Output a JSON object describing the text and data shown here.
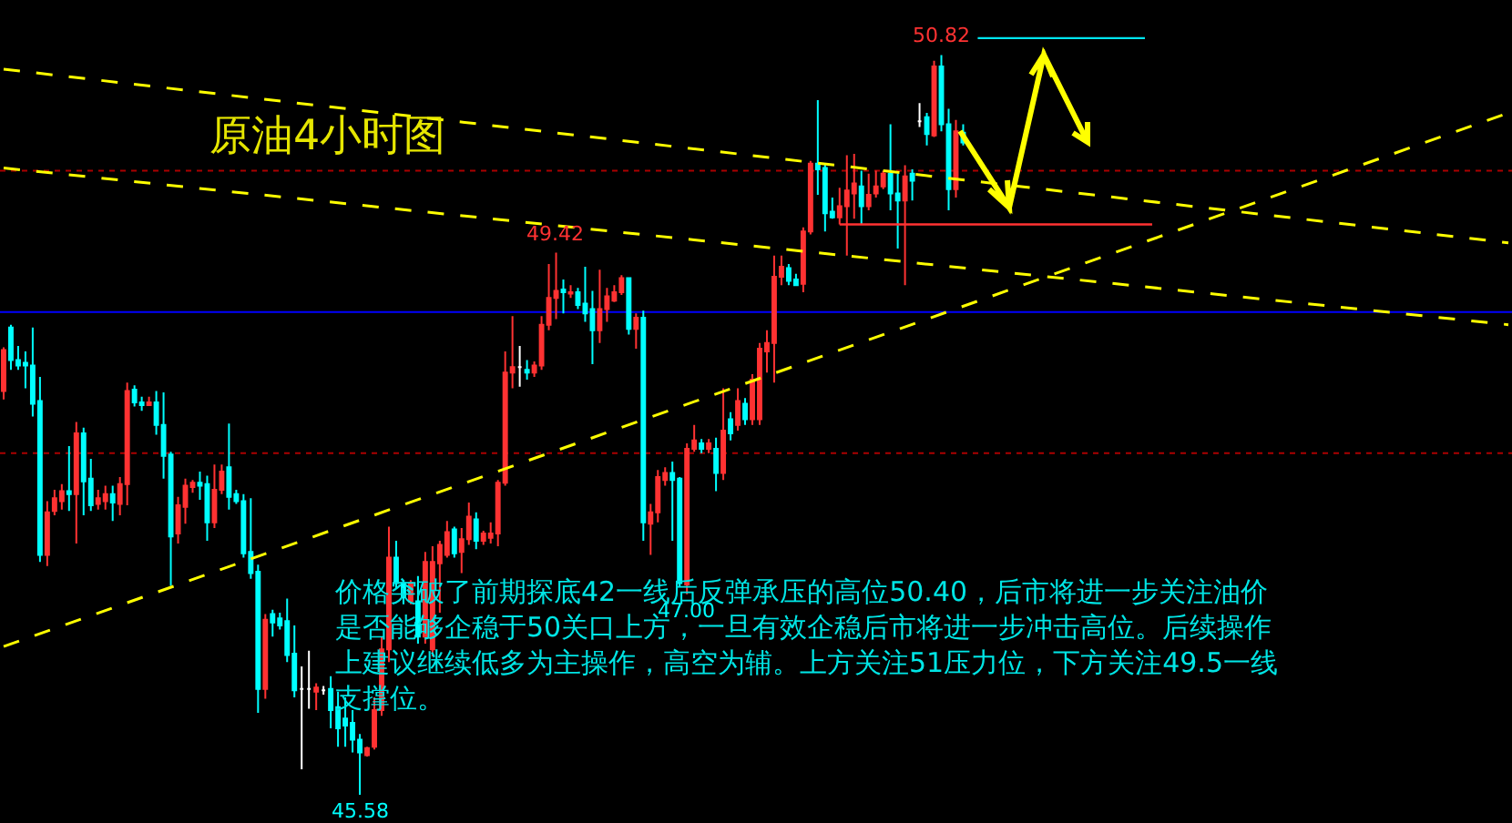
{
  "chart_data": {
    "type": "candlestick",
    "title": "原油4小时图",
    "categories": [
      null,
      null,
      null,
      null,
      null,
      null,
      null,
      null,
      null,
      null,
      null,
      null,
      null,
      null,
      null,
      null,
      null,
      null,
      null,
      null,
      null,
      null,
      null,
      null,
      null,
      null,
      null,
      null,
      null,
      null,
      null,
      null,
      null,
      null,
      null,
      null,
      null,
      null,
      null,
      null,
      null,
      null,
      null,
      null,
      null,
      null,
      null,
      null,
      null,
      null,
      null,
      null,
      null,
      null,
      null,
      null,
      null,
      null,
      null,
      null,
      null,
      null,
      null,
      null,
      null,
      null,
      null,
      null,
      null,
      null,
      null,
      null,
      null,
      null,
      null,
      null,
      null,
      null,
      null,
      null,
      null,
      null,
      null,
      null,
      null,
      null,
      null,
      null,
      null,
      null,
      null,
      null,
      null,
      null,
      null,
      null,
      null,
      null,
      null,
      null,
      null,
      null,
      null,
      null,
      null,
      null,
      null,
      null,
      null,
      null,
      null,
      null,
      null,
      null,
      null,
      null,
      null,
      null,
      null,
      null,
      null,
      null,
      null,
      null,
      null,
      null,
      null,
      null,
      null,
      null,
      null,
      null,
      null,
      null,
      null,
      null,
      null,
      null,
      null,
      null,
      null,
      null,
      null,
      null,
      null,
      null,
      null,
      null,
      null,
      null,
      null,
      null,
      null,
      null,
      null,
      null,
      null,
      null,
      null,
      null,
      null,
      null,
      null,
      null,
      null,
      null,
      null,
      null,
      null,
      null,
      null,
      null,
      null,
      null,
      null,
      null,
      null,
      null,
      null,
      null,
      null,
      null,
      null,
      null,
      null,
      null,
      null,
      null,
      null,
      null,
      null,
      null,
      null,
      null,
      null,
      null,
      null,
      null,
      null,
      null,
      null,
      null,
      null,
      null,
      null,
      null,
      null,
      null
    ],
    "ohlc": [
      [
        48.44,
        48.75,
        48.38,
        48.73
      ],
      [
        48.89,
        48.91,
        48.59,
        48.66
      ],
      [
        48.66,
        48.76,
        48.59,
        48.62
      ],
      [
        48.64,
        48.72,
        48.46,
        48.62
      ],
      [
        48.62,
        48.89,
        48.26,
        48.35
      ],
      [
        48.37,
        48.54,
        47.23,
        47.28
      ],
      [
        47.28,
        47.66,
        47.2,
        47.58
      ],
      [
        47.59,
        47.74,
        47.56,
        47.68
      ],
      [
        47.66,
        47.78,
        47.6,
        47.73
      ],
      [
        47.73,
        48.05,
        47.59,
        47.71
      ],
      [
        47.71,
        48.22,
        47.36,
        48.14
      ],
      [
        48.14,
        48.18,
        47.56,
        47.8
      ],
      [
        47.82,
        47.96,
        47.59,
        47.63
      ],
      [
        47.64,
        47.74,
        47.6,
        47.68
      ],
      [
        47.66,
        47.77,
        47.6,
        47.71
      ],
      [
        47.71,
        47.77,
        47.52,
        47.65
      ],
      [
        47.64,
        47.83,
        47.56,
        47.78
      ],
      [
        47.78,
        48.5,
        47.63,
        48.44
      ],
      [
        48.45,
        48.48,
        48.33,
        48.36
      ],
      [
        48.36,
        48.4,
        48.3,
        48.34
      ],
      [
        48.34,
        48.4,
        48.34,
        48.36
      ],
      [
        48.36,
        48.44,
        48.13,
        48.2
      ],
      [
        48.2,
        48.43,
        47.82,
        47.98
      ],
      [
        47.99,
        48.01,
        47.06,
        47.41
      ],
      [
        47.43,
        47.69,
        47.36,
        47.63
      ],
      [
        47.62,
        47.82,
        47.5,
        47.77
      ],
      [
        47.76,
        47.81,
        47.72,
        47.79
      ],
      [
        47.79,
        47.87,
        47.67,
        47.77
      ],
      [
        47.78,
        47.84,
        47.38,
        47.51
      ],
      [
        47.51,
        47.92,
        47.47,
        47.74
      ],
      [
        47.74,
        47.92,
        47.71,
        47.87
      ],
      [
        47.9,
        48.21,
        47.6,
        47.69
      ],
      [
        47.71,
        47.74,
        47.64,
        47.66
      ],
      [
        47.66,
        47.71,
        47.26,
        47.29
      ],
      [
        47.3,
        47.68,
        47.11,
        47.15
      ],
      [
        47.16,
        47.21,
        46.16,
        46.33
      ],
      [
        46.33,
        46.86,
        46.26,
        46.82
      ],
      [
        46.86,
        46.89,
        46.7,
        46.8
      ],
      [
        46.83,
        46.87,
        46.75,
        46.78
      ],
      [
        46.81,
        46.97,
        46.52,
        46.57
      ],
      [
        46.58,
        46.78,
        46.27,
        46.32
      ],
      [
        46.33,
        46.49,
        45.76,
        46.33
      ],
      [
        46.33,
        46.6,
        46.19,
        46.33
      ],
      [
        46.31,
        46.37,
        46.18,
        46.34
      ],
      [
        46.32,
        46.35,
        46.29,
        46.32
      ],
      [
        46.33,
        46.42,
        46.05,
        46.18
      ],
      [
        46.2,
        46.31,
        45.92,
        46.05
      ],
      [
        46.12,
        46.27,
        45.92,
        46.07
      ],
      [
        46.09,
        46.18,
        45.88,
        45.97
      ],
      [
        45.97,
        46.01,
        45.58,
        45.88
      ],
      [
        45.86,
        45.92,
        45.85,
        45.91
      ],
      [
        45.92,
        46.27,
        45.9,
        46.18
      ],
      [
        46.18,
        46.7,
        46.14,
        46.61
      ],
      [
        46.61,
        47.48,
        46.52,
        47.26
      ],
      [
        47.26,
        47.38,
        47.04,
        47.08
      ],
      [
        47.08,
        47.1,
        46.93,
        46.98
      ],
      [
        46.95,
        47.1,
        46.93,
        47.08
      ],
      [
        46.95,
        47.13,
        46.65,
        46.7
      ],
      [
        46.7,
        47.3,
        46.65,
        47.23
      ],
      [
        46.61,
        47.34,
        46.56,
        47.23
      ],
      [
        47.22,
        47.38,
        46.87,
        47.35
      ],
      [
        47.28,
        47.52,
        47.26,
        47.44
      ],
      [
        47.46,
        47.48,
        47.26,
        47.29
      ],
      [
        47.3,
        47.47,
        47.15,
        47.39
      ],
      [
        47.39,
        47.65,
        47.35,
        47.55
      ],
      [
        47.53,
        47.58,
        47.32,
        47.38
      ],
      [
        47.38,
        47.45,
        47.35,
        47.43
      ],
      [
        47.4,
        47.51,
        47.36,
        47.43
      ],
      [
        47.43,
        47.81,
        47.34,
        47.79
      ],
      [
        47.79,
        48.72,
        47.77,
        48.57
      ],
      [
        48.57,
        48.97,
        48.46,
        48.61
      ],
      [
        48.61,
        48.76,
        48.47,
        48.61
      ],
      [
        48.59,
        48.66,
        48.52,
        48.57
      ],
      [
        48.57,
        48.65,
        48.54,
        48.62
      ],
      [
        48.62,
        48.97,
        48.59,
        48.91
      ],
      [
        48.91,
        49.34,
        48.87,
        49.1
      ],
      [
        49.1,
        49.42,
        48.95,
        49.15
      ],
      [
        49.16,
        49.23,
        48.99,
        49.14
      ],
      [
        49.13,
        49.19,
        49.1,
        49.14
      ],
      [
        49.14,
        49.17,
        49.02,
        49.05
      ],
      [
        49.06,
        49.32,
        48.93,
        48.99
      ],
      [
        49.02,
        49.15,
        48.63,
        48.87
      ],
      [
        48.87,
        49.3,
        48.78,
        49.02
      ],
      [
        49.02,
        49.17,
        48.93,
        49.11
      ],
      [
        49.08,
        49.19,
        49.07,
        49.14
      ],
      [
        49.14,
        49.26,
        49.12,
        49.24
      ],
      [
        49.24,
        49.24,
        48.84,
        48.88
      ],
      [
        48.88,
        48.99,
        48.74,
        48.96
      ],
      [
        48.96,
        49.01,
        47.38,
        47.51
      ],
      [
        47.5,
        47.64,
        47.28,
        47.58
      ],
      [
        47.58,
        47.88,
        47.51,
        47.83
      ],
      [
        47.81,
        47.9,
        47.77,
        47.86
      ],
      [
        47.86,
        47.94,
        47.38,
        47.81
      ],
      [
        47.82,
        47.83,
        47.05,
        47.08
      ],
      [
        47.07,
        48.07,
        47.0,
        48.03
      ],
      [
        48.03,
        48.2,
        48.01,
        48.09
      ],
      [
        48.07,
        48.1,
        48.0,
        48.03
      ],
      [
        48.03,
        48.1,
        48.0,
        48.07
      ],
      [
        48.03,
        48.11,
        47.73,
        47.86
      ],
      [
        47.86,
        48.46,
        47.81,
        48.16
      ],
      [
        48.24,
        48.29,
        48.09,
        48.14
      ],
      [
        48.2,
        48.46,
        48.16,
        48.37
      ],
      [
        48.35,
        48.39,
        48.2,
        48.24
      ],
      [
        48.24,
        48.56,
        48.2,
        48.52
      ],
      [
        48.24,
        48.78,
        48.2,
        48.74
      ],
      [
        48.72,
        48.87,
        48.57,
        48.78
      ],
      [
        48.78,
        49.4,
        48.5,
        49.25
      ],
      [
        49.25,
        49.4,
        49.19,
        49.32
      ],
      [
        49.31,
        49.34,
        49.19,
        49.22
      ],
      [
        49.23,
        49.27,
        49.19,
        49.19
      ],
      [
        49.2,
        49.6,
        49.14,
        49.57
      ],
      [
        49.57,
        50.07,
        49.55,
        50.05
      ],
      [
        50.05,
        50.5,
        49.83,
        50.01
      ],
      [
        50.02,
        50.05,
        49.57,
        49.7
      ],
      [
        49.71,
        49.81,
        49.66,
        49.67
      ],
      [
        49.67,
        49.88,
        49.62,
        49.75
      ],
      [
        49.75,
        50.11,
        49.4,
        49.86
      ],
      [
        49.84,
        50.12,
        49.66,
        49.91
      ],
      [
        49.89,
        50.0,
        49.62,
        49.75
      ],
      [
        49.75,
        49.98,
        49.72,
        49.83
      ],
      [
        49.84,
        50.0,
        49.81,
        49.89
      ],
      [
        49.89,
        50.0,
        49.87,
        49.98
      ],
      [
        49.98,
        50.33,
        49.72,
        49.84
      ],
      [
        49.84,
        49.98,
        49.45,
        49.79
      ],
      [
        49.79,
        50.04,
        49.19,
        49.96
      ],
      [
        49.98,
        50.01,
        49.79,
        49.93
      ],
      [
        50.35,
        50.48,
        50.31,
        50.35
      ],
      [
        50.38,
        50.41,
        50.18,
        50.26
      ],
      [
        50.25,
        50.78,
        50.24,
        50.74
      ],
      [
        50.74,
        50.82,
        50.28,
        50.33
      ],
      [
        50.33,
        50.44,
        49.72,
        49.87
      ],
      [
        49.87,
        50.36,
        49.81,
        50.28
      ],
      [
        50.27,
        50.33,
        50.18,
        50.2
      ],
      null,
      null,
      null,
      null,
      null,
      null,
      null,
      null,
      null,
      null,
      null,
      null,
      null,
      null,
      null,
      null,
      null,
      null,
      null,
      null,
      null,
      null,
      null,
      null,
      null,
      null,
      null,
      null,
      null,
      null,
      null,
      null,
      null,
      null,
      null,
      null,
      null,
      null,
      null,
      null,
      null,
      null,
      null,
      null,
      null,
      null,
      null,
      null,
      null,
      null,
      null,
      null,
      null,
      null,
      null,
      null,
      null,
      null,
      null,
      null,
      null,
      null,
      null,
      null,
      null,
      null,
      null,
      null,
      null,
      null,
      null,
      null,
      null,
      null,
      null
    ],
    "colors": [
      "#ff3232",
      "#00ffff",
      "#00ffff",
      "#00ffff",
      "#00ffff",
      "#00ffff",
      "#ff3232",
      "#ff3232",
      "#ff3232",
      "#00ffff",
      "#ff3232",
      "#00ffff",
      "#00ffff",
      "#ff3232",
      "#ff3232",
      "#00ffff",
      "#ff3232",
      "#ff3232",
      "#00ffff",
      "#00ffff",
      "#ff3232",
      "#00ffff",
      "#00ffff",
      "#00ffff",
      "#ff3232",
      "#ff3232",
      "#ff3232",
      "#00ffff",
      "#00ffff",
      "#ff3232",
      "#ff3232",
      "#00ffff",
      "#00ffff",
      "#00ffff",
      "#00ffff",
      "#00ffff",
      "#ff3232",
      "#00ffff",
      "#00ffff",
      "#00ffff",
      "#00ffff",
      "#ffffff",
      "#ffffff",
      "#ff3232",
      "#ffffff",
      "#00ffff",
      "#00ffff",
      "#00ffff",
      "#00ffff",
      "#00ffff",
      "#ff3232",
      "#ff3232",
      "#ff3232",
      "#ff3232",
      "#00ffff",
      "#00ffff",
      "#ff3232",
      "#00ffff",
      "#ff3232",
      "#ff3232",
      "#ff3232",
      "#ff3232",
      "#00ffff",
      "#ff3232",
      "#ff3232",
      "#00ffff",
      "#ff3232",
      "#ff3232",
      "#ff3232",
      "#ff3232",
      "#ff3232",
      "#ffffff",
      "#00ffff",
      "#ff3232",
      "#ff3232",
      "#ff3232",
      "#ff3232",
      "#00ffff",
      "#ff3232",
      "#00ffff",
      "#00ffff",
      "#00ffff",
      "#ff3232",
      "#ff3232",
      "#ff3232",
      "#ff3232",
      "#00ffff",
      "#ff3232",
      "#00ffff",
      "#ff3232",
      "#ff3232",
      "#ff3232",
      "#00ffff",
      "#00ffff",
      "#ff3232",
      "#ff3232",
      "#00ffff",
      "#ff3232",
      "#00ffff",
      "#ff3232",
      "#00ffff",
      "#ff3232",
      "#00ffff",
      "#ff3232",
      "#ff3232",
      "#ff3232",
      "#ff3232",
      "#ff3232",
      "#00ffff",
      "#00ffff",
      "#ff3232",
      "#ff3232",
      "#00ffff",
      "#00ffff",
      "#00ffff",
      "#ff3232",
      "#ff3232",
      "#ff3232",
      "#00ffff",
      "#ff3232",
      "#ff3232",
      "#ff3232",
      "#00ffff",
      "#00ffff",
      "#ff3232",
      "#00ffff",
      "#ffffff",
      "#00ffff",
      "#ff3232",
      "#00ffff",
      "#00ffff",
      "#ff3232",
      "#00ffff",
      null,
      null,
      null,
      null,
      null,
      null,
      null,
      null,
      null,
      null,
      null,
      null,
      null,
      null,
      null,
      null,
      null,
      null,
      null,
      null,
      null,
      null,
      null,
      null,
      null,
      null,
      null,
      null,
      null,
      null,
      null,
      null,
      null,
      null,
      null,
      null,
      null,
      null,
      null,
      null,
      null,
      null,
      null,
      null,
      null,
      null,
      null,
      null,
      null,
      null,
      null,
      null,
      null,
      null,
      null,
      null,
      null,
      null,
      null,
      null,
      null,
      null,
      null,
      null,
      null,
      null,
      null,
      null,
      null,
      null,
      null,
      null,
      null,
      null,
      null
    ],
    "series": [
      {
        "type": "line",
        "line_style": "dashed",
        "color": "#ffff00",
        "values": [
          50.72,
          null,
          null,
          null,
          null,
          null,
          null,
          null,
          null,
          null,
          null,
          null,
          null,
          null,
          null,
          null,
          null,
          null,
          null,
          null,
          null,
          null,
          null,
          null,
          null,
          null,
          null,
          null,
          null,
          null,
          null,
          null,
          null,
          null,
          null,
          null,
          null,
          null,
          null,
          null,
          null,
          null,
          null,
          null,
          null,
          null,
          null,
          null,
          null,
          null,
          null,
          null,
          null,
          null,
          null,
          null,
          null,
          null,
          null,
          null,
          null,
          null,
          null,
          null,
          null,
          null,
          null,
          null,
          null,
          null,
          null,
          null,
          null,
          null,
          null,
          null,
          null,
          null,
          null,
          null,
          null,
          null,
          null,
          null,
          null,
          null,
          null,
          null,
          null,
          null,
          null,
          null,
          null,
          null,
          null,
          null,
          null,
          null,
          null,
          null,
          null,
          null,
          null,
          null,
          null,
          null,
          null,
          null,
          null,
          null,
          null,
          null,
          null,
          null,
          null,
          null,
          null,
          null,
          null,
          null,
          null,
          null,
          null,
          null,
          null,
          null,
          null,
          null,
          null,
          null,
          null,
          null,
          null,
          null,
          null,
          null,
          null,
          null,
          null,
          null,
          null,
          null,
          null,
          null,
          null,
          null,
          null,
          null,
          null,
          null,
          null,
          null,
          null,
          null,
          null,
          null,
          null,
          null,
          null,
          null,
          null,
          null,
          null,
          null,
          null,
          null,
          null,
          null,
          null,
          null,
          null,
          null,
          null,
          null,
          null,
          null,
          null,
          null,
          null,
          null,
          null,
          null,
          null,
          null,
          null,
          null,
          null,
          null,
          null,
          null,
          null,
          null,
          null,
          null,
          null,
          null,
          null,
          null,
          null,
          null,
          null,
          null,
          null,
          null,
          null,
          null,
          null,
          49.49
        ]
      },
      {
        "type": "line",
        "line_style": "dashed",
        "color": "#ffff00",
        "values": [
          50.02,
          null,
          null,
          null,
          null,
          null,
          null,
          null,
          null,
          null,
          null,
          null,
          null,
          null,
          null,
          null,
          null,
          null,
          null,
          null,
          null,
          null,
          null,
          null,
          null,
          null,
          null,
          null,
          null,
          null,
          null,
          null,
          null,
          null,
          null,
          null,
          null,
          null,
          null,
          null,
          null,
          null,
          null,
          null,
          null,
          null,
          null,
          null,
          null,
          null,
          null,
          null,
          null,
          null,
          null,
          null,
          null,
          null,
          null,
          null,
          null,
          null,
          null,
          null,
          null,
          null,
          null,
          null,
          null,
          null,
          null,
          null,
          null,
          null,
          null,
          null,
          null,
          null,
          null,
          null,
          null,
          null,
          null,
          null,
          null,
          null,
          null,
          null,
          null,
          null,
          null,
          null,
          null,
          null,
          null,
          null,
          null,
          null,
          null,
          null,
          null,
          null,
          null,
          null,
          null,
          null,
          null,
          null,
          null,
          null,
          null,
          null,
          null,
          null,
          null,
          null,
          null,
          null,
          null,
          null,
          null,
          null,
          null,
          null,
          null,
          null,
          null,
          null,
          null,
          null,
          null,
          null,
          null,
          null,
          null,
          null,
          null,
          null,
          null,
          null,
          null,
          null,
          null,
          null,
          null,
          null,
          null,
          null,
          null,
          null,
          null,
          null,
          null,
          null,
          null,
          null,
          null,
          null,
          null,
          null,
          null,
          null,
          null,
          null,
          null,
          null,
          null,
          null,
          null,
          null,
          null,
          null,
          null,
          null,
          null,
          null,
          null,
          null,
          null,
          null,
          null,
          null,
          null,
          null,
          null,
          null,
          null,
          null,
          null,
          null,
          null,
          null,
          null,
          null,
          null,
          null,
          null,
          null,
          null,
          null,
          null,
          null,
          null,
          null,
          null,
          null,
          null,
          48.91
        ]
      },
      {
        "type": "line",
        "line_style": "dashed",
        "color": "#ffff00",
        "values": [
          46.63,
          null,
          null,
          null,
          null,
          null,
          null,
          null,
          null,
          null,
          null,
          null,
          null,
          null,
          null,
          null,
          null,
          null,
          null,
          null,
          null,
          null,
          null,
          null,
          null,
          null,
          null,
          null,
          null,
          null,
          null,
          null,
          null,
          null,
          null,
          null,
          null,
          null,
          null,
          null,
          null,
          null,
          null,
          null,
          null,
          null,
          null,
          null,
          null,
          null,
          null,
          null,
          null,
          null,
          null,
          null,
          null,
          null,
          null,
          null,
          null,
          null,
          null,
          null,
          null,
          null,
          null,
          null,
          null,
          null,
          null,
          null,
          null,
          null,
          null,
          null,
          null,
          null,
          null,
          null,
          null,
          null,
          null,
          null,
          null,
          null,
          null,
          null,
          null,
          null,
          null,
          null,
          null,
          null,
          null,
          null,
          null,
          null,
          null,
          null,
          null,
          null,
          null,
          null,
          null,
          null,
          null,
          null,
          null,
          null,
          null,
          null,
          null,
          null,
          null,
          null,
          null,
          null,
          null,
          null,
          null,
          null,
          null,
          null,
          null,
          null,
          null,
          null,
          null,
          null,
          null,
          null,
          null,
          null,
          null,
          null,
          null,
          null,
          null,
          null,
          null,
          null,
          null,
          null,
          null,
          null,
          null,
          null,
          null,
          null,
          null,
          null,
          null,
          null,
          null,
          null,
          null,
          null,
          null,
          null,
          null,
          null,
          null,
          null,
          null,
          null,
          null,
          null,
          null,
          null,
          null,
          null,
          null,
          null,
          null,
          null,
          null,
          null,
          null,
          null,
          null,
          null,
          null,
          null,
          null,
          null,
          null,
          null,
          null,
          null,
          null,
          null,
          null,
          null,
          null,
          null,
          null,
          null,
          null,
          null,
          null,
          null,
          null,
          null,
          null,
          null,
          null,
          50.41
        ]
      },
      {
        "type": "line",
        "line_style": "solid",
        "color": "#ff3232",
        "values": [
          null,
          null,
          null,
          null,
          null,
          null,
          null,
          null,
          null,
          null,
          null,
          null,
          null,
          null,
          null,
          null,
          null,
          null,
          null,
          null,
          null,
          null,
          null,
          null,
          null,
          null,
          null,
          null,
          null,
          null,
          null,
          null,
          null,
          null,
          null,
          null,
          null,
          null,
          null,
          null,
          null,
          null,
          null,
          null,
          null,
          null,
          null,
          null,
          null,
          null,
          null,
          null,
          null,
          null,
          null,
          null,
          null,
          null,
          null,
          null,
          null,
          null,
          null,
          null,
          null,
          null,
          null,
          null,
          null,
          null,
          null,
          null,
          null,
          null,
          null,
          null,
          null,
          null,
          null,
          null,
          null,
          null,
          null,
          null,
          null,
          null,
          null,
          null,
          null,
          null,
          null,
          null,
          null,
          null,
          null,
          null,
          null,
          null,
          null,
          null,
          null,
          null,
          null,
          null,
          null,
          null,
          null,
          null,
          null,
          null,
          null,
          null,
          null,
          null,
          null,
          49.62,
          null,
          null,
          null,
          null,
          null,
          null,
          null,
          null,
          null,
          null,
          null,
          null,
          null,
          null,
          null,
          null,
          null,
          null,
          null,
          null,
          null,
          null,
          null,
          null,
          null,
          null,
          null,
          null,
          null,
          null,
          null,
          null,
          null,
          null,
          null,
          null,
          null,
          null,
          null,
          null,
          null,
          null,
          49.62,
          null,
          null,
          null,
          null,
          null,
          null,
          null,
          null,
          null,
          null,
          null,
          null,
          null,
          null,
          null,
          null,
          null,
          null,
          null,
          null,
          null,
          null,
          null,
          null,
          null,
          null,
          null,
          null,
          null,
          null,
          null,
          null,
          null,
          null,
          null,
          null,
          null,
          null,
          null,
          null,
          null,
          null,
          null,
          null,
          null,
          null,
          null,
          null,
          null
        ]
      },
      {
        "type": "line",
        "line_style": "solid",
        "color": "#00e5ee",
        "values": [
          null,
          null,
          null,
          null,
          null,
          null,
          null,
          null,
          null,
          null,
          null,
          null,
          null,
          null,
          null,
          null,
          null,
          null,
          null,
          null,
          null,
          null,
          null,
          null,
          null,
          null,
          null,
          null,
          null,
          null,
          null,
          null,
          null,
          null,
          null,
          null,
          null,
          null,
          null,
          null,
          null,
          null,
          null,
          null,
          null,
          null,
          null,
          null,
          null,
          null,
          null,
          null,
          null,
          null,
          null,
          null,
          null,
          null,
          null,
          null,
          null,
          null,
          null,
          null,
          null,
          null,
          null,
          null,
          null,
          null,
          null,
          null,
          null,
          null,
          null,
          null,
          null,
          null,
          null,
          null,
          null,
          null,
          null,
          null,
          null,
          null,
          null,
          null,
          null,
          null,
          null,
          null,
          null,
          null,
          null,
          null,
          null,
          null,
          null,
          null,
          null,
          null,
          null,
          null,
          null,
          null,
          null,
          null,
          null,
          null,
          null,
          null,
          null,
          null,
          null,
          null,
          null,
          null,
          null,
          null,
          null,
          null,
          null,
          null,
          null,
          null,
          null,
          null,
          null,
          null,
          null,
          null,
          null,
          null,
          50.94,
          null,
          null,
          null,
          null,
          null,
          null,
          null,
          null,
          null,
          null,
          null,
          null,
          null,
          null,
          null,
          null,
          null,
          null,
          null,
          null,
          null,
          null,
          50.94,
          null,
          null,
          null,
          null,
          null,
          null,
          null,
          null,
          null,
          null,
          null,
          null,
          null,
          null,
          null,
          null,
          null,
          null,
          null,
          null,
          null,
          null,
          null,
          null,
          null,
          null,
          null,
          null,
          null,
          null,
          null,
          null,
          null,
          null,
          null,
          null,
          null,
          null,
          null,
          null,
          null,
          null,
          null,
          null,
          null,
          null,
          null,
          null,
          null,
          null
        ]
      }
    ],
    "ref_lines": [
      {
        "axis": "y",
        "value": 50,
        "color": "#aa0000",
        "line_style": "dotted"
      },
      {
        "axis": "y",
        "value": 49,
        "color": "#0000ff",
        "line_style": "solid"
      },
      {
        "axis": "y",
        "value": 48,
        "color": "#aa0000",
        "line_style": "dotted"
      }
    ],
    "annotations": [
      {
        "text": "50.82",
        "y": 50.82
      },
      {
        "text": "49.42",
        "y": 49.42
      },
      {
        "text": "47.00",
        "y": 47.0
      },
      {
        "text": "45.58",
        "y": 45.58
      },
      "价格突破了前期探底42一线后反弹承压的高位50.40，后市将进一步关注油价是否能够企稳于50关口上方，一旦有效企稳后市将进一步冲击高位。后续操作上建议继续低多为主操作，高空为辅。上方关注51压力位，下方关注49.5一线支撑位。"
    ],
    "ylim": [
      45.38,
      51.21
    ],
    "tick_labels": false
  }
}
